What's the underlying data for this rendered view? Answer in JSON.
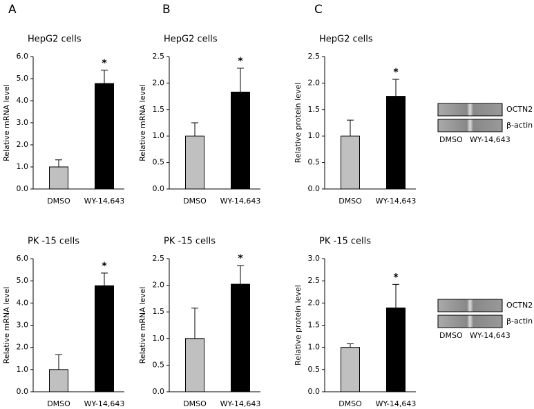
{
  "panels": [
    "A",
    "B",
    "C"
  ],
  "chart_data": [
    {
      "type": "bar",
      "title": "HepG2  cells",
      "ylabel": "Relative mRNA level",
      "categories": [
        "DMSO",
        "WY-14,643"
      ],
      "values": [
        1.0,
        4.78
      ],
      "errors": [
        0.32,
        0.6
      ],
      "colors": [
        "#c0c0c0",
        "#000000"
      ],
      "ylim": [
        0,
        6
      ],
      "yticks": [
        {
          "value": 0,
          "label": "0.0"
        },
        {
          "value": 1,
          "label": "1.0"
        },
        {
          "value": 2,
          "label": "2.0"
        },
        {
          "value": 3,
          "label": "3.0"
        },
        {
          "value": 4,
          "label": "4.0"
        },
        {
          "value": 5,
          "label": "5.0"
        },
        {
          "value": 6,
          "label": "6.0"
        }
      ],
      "annotation": "*"
    },
    {
      "type": "bar",
      "title": "HepG2  cells",
      "ylabel": "Relative mRNA level",
      "categories": [
        "DMSO",
        "WY-14,643"
      ],
      "values": [
        1.0,
        1.83
      ],
      "errors": [
        0.25,
        0.45
      ],
      "colors": [
        "#c0c0c0",
        "#000000"
      ],
      "ylim": [
        0,
        2.5
      ],
      "yticks": [
        {
          "value": 0,
          "label": "0.0"
        },
        {
          "value": 0.5,
          "label": "0.5"
        },
        {
          "value": 1,
          "label": "1.0"
        },
        {
          "value": 1.5,
          "label": "1.5"
        },
        {
          "value": 2,
          "label": "2.0"
        },
        {
          "value": 2.5,
          "label": "2.5"
        }
      ],
      "annotation": "*"
    },
    {
      "type": "bar",
      "title": "HepG2  cells",
      "ylabel": "Relative protein level",
      "categories": [
        "DMSO",
        "WY-14,643"
      ],
      "values": [
        1.0,
        1.75
      ],
      "errors": [
        0.3,
        0.32
      ],
      "colors": [
        "#c0c0c0",
        "#000000"
      ],
      "ylim": [
        0,
        2.5
      ],
      "yticks": [
        {
          "value": 0,
          "label": "0.0"
        },
        {
          "value": 0.5,
          "label": "0.5"
        },
        {
          "value": 1,
          "label": "1.0"
        },
        {
          "value": 1.5,
          "label": "1.5"
        },
        {
          "value": 2,
          "label": "2.0"
        },
        {
          "value": 2.5,
          "label": "2.5"
        }
      ],
      "annotation": "*"
    },
    {
      "type": "bar",
      "title": "PK -15 cells",
      "ylabel": "Relative mRNA level",
      "categories": [
        "DMSO",
        "WY-14,643"
      ],
      "values": [
        1.0,
        4.78
      ],
      "errors": [
        0.67,
        0.57
      ],
      "colors": [
        "#c0c0c0",
        "#000000"
      ],
      "ylim": [
        0,
        6
      ],
      "yticks": [
        {
          "value": 0,
          "label": "0.0"
        },
        {
          "value": 1,
          "label": "1.0"
        },
        {
          "value": 2,
          "label": "2.0"
        },
        {
          "value": 3,
          "label": "3.0"
        },
        {
          "value": 4,
          "label": "4.0"
        },
        {
          "value": 5,
          "label": "5.0"
        },
        {
          "value": 6,
          "label": "6.0"
        }
      ],
      "annotation": "*"
    },
    {
      "type": "bar",
      "title": "PK -15 cells",
      "ylabel": "Relative mRNA level",
      "categories": [
        "DMSO",
        "WY-14,643"
      ],
      "values": [
        1.0,
        2.02
      ],
      "errors": [
        0.57,
        0.35
      ],
      "colors": [
        "#c0c0c0",
        "#000000"
      ],
      "ylim": [
        0,
        2.5
      ],
      "yticks": [
        {
          "value": 0,
          "label": "0.0"
        },
        {
          "value": 0.5,
          "label": "0.5"
        },
        {
          "value": 1,
          "label": "1.0"
        },
        {
          "value": 1.5,
          "label": "1.5"
        },
        {
          "value": 2,
          "label": "2.0"
        },
        {
          "value": 2.5,
          "label": "2.5"
        }
      ],
      "annotation": "*"
    },
    {
      "type": "bar",
      "title": "PK -15 cells",
      "ylabel": "Relative protein level",
      "categories": [
        "DMSO",
        "WY-14,643"
      ],
      "values": [
        1.0,
        1.89
      ],
      "errors": [
        0.08,
        0.53
      ],
      "colors": [
        "#c0c0c0",
        "#000000"
      ],
      "ylim": [
        0,
        3
      ],
      "yticks": [
        {
          "value": 0,
          "label": "0.0"
        },
        {
          "value": 0.5,
          "label": "0.5"
        },
        {
          "value": 1,
          "label": "1.0"
        },
        {
          "value": 1.5,
          "label": "1.5"
        },
        {
          "value": 2,
          "label": "2.0"
        },
        {
          "value": 2.5,
          "label": "2.5"
        },
        {
          "value": 3,
          "label": "3.0"
        }
      ],
      "annotation": "*"
    }
  ],
  "blots": [
    {
      "bands": [
        "OCTN2",
        "β-actin"
      ],
      "lanes": [
        "DMSO",
        "WY-14,643"
      ]
    },
    {
      "bands": [
        "OCTN2",
        "β-actin"
      ],
      "lanes": [
        "DMSO",
        "WY-14,643"
      ]
    }
  ]
}
